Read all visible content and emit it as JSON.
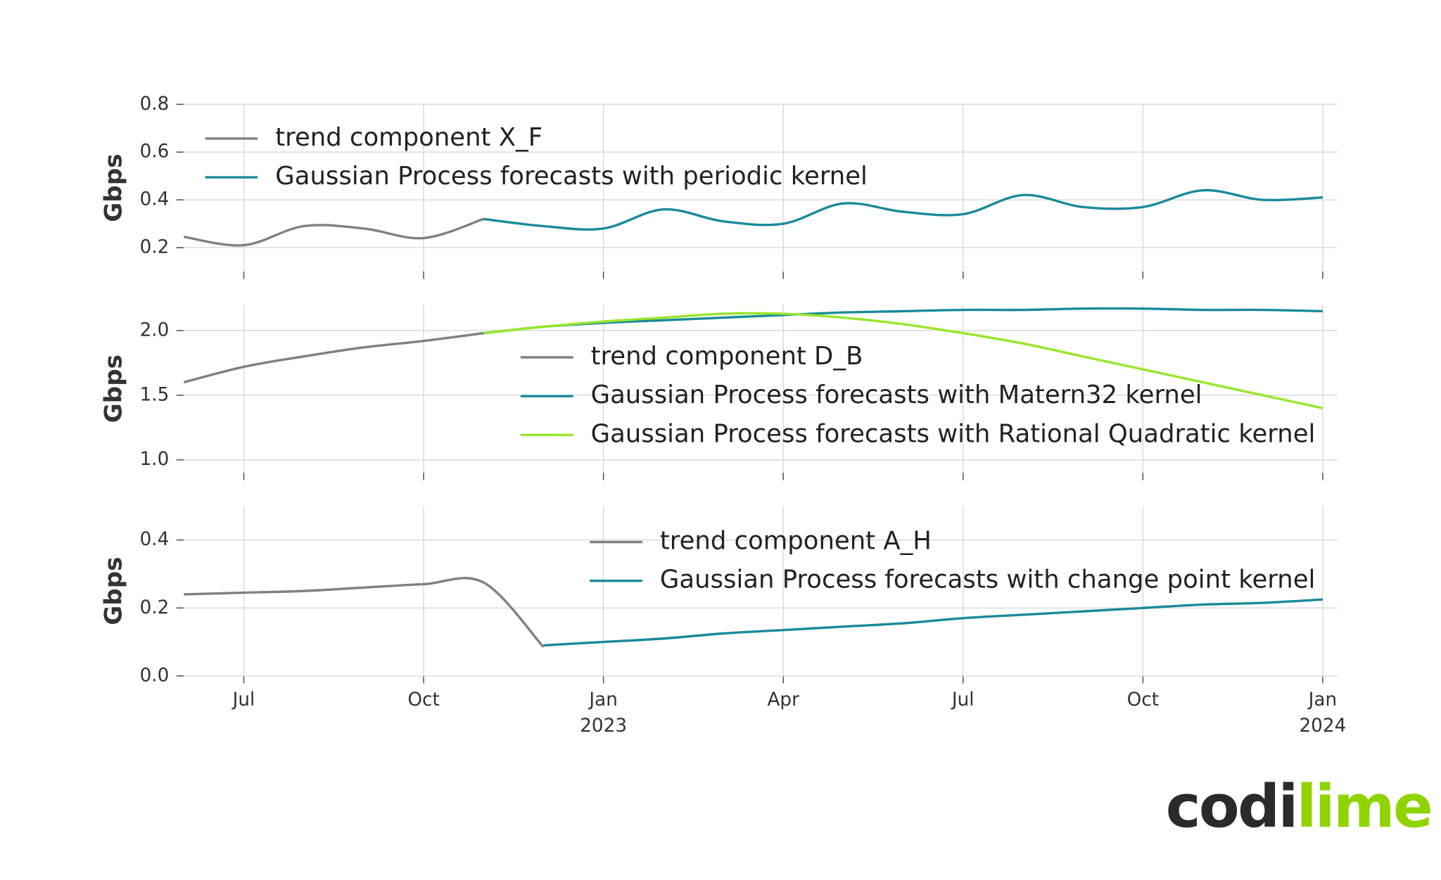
{
  "chart_data": [
    {
      "type": "line",
      "y_label": "Gbps",
      "legend": "upper left",
      "x": [
        "2022-06",
        "2022-07",
        "2022-08",
        "2022-09",
        "2022-10",
        "2022-11",
        "2022-12",
        "2023-01",
        "2023-02",
        "2023-03",
        "2023-04",
        "2023-05",
        "2023-06",
        "2023-07",
        "2023-08",
        "2023-09",
        "2023-10",
        "2023-11",
        "2023-12",
        "2024-01"
      ],
      "series": [
        {
          "name": "trend component X_F",
          "color": "#808080",
          "values": [
            0.245,
            0.21,
            0.29,
            0.28,
            0.24,
            0.32,
            null,
            null,
            null,
            null,
            null,
            null,
            null,
            null,
            null,
            null,
            null,
            null,
            null,
            null
          ]
        },
        {
          "name": "Gaussian Process forecasts with periodic kernel",
          "color": "#1a8a9a",
          "values": [
            null,
            null,
            null,
            null,
            null,
            0.32,
            0.29,
            0.28,
            0.36,
            0.31,
            0.3,
            0.385,
            0.35,
            0.34,
            0.42,
            0.37,
            0.37,
            0.44,
            0.4,
            0.41
          ]
        }
      ],
      "xlim": [
        "2022-06",
        "2024-01"
      ],
      "xticks": [
        "2022-07",
        "2022-10",
        "2023-01",
        "2023-04",
        "2023-07",
        "2023-10",
        "2024-01"
      ],
      "ylim": [
        0.1,
        0.8
      ],
      "yticks": [
        0.2,
        0.4,
        0.6,
        0.8
      ],
      "grid": true
    },
    {
      "type": "line",
      "y_label": "Gbps",
      "legend": "center right",
      "x": [
        "2022-06",
        "2022-07",
        "2022-08",
        "2022-09",
        "2022-10",
        "2022-11",
        "2022-12",
        "2023-01",
        "2023-02",
        "2023-03",
        "2023-04",
        "2023-05",
        "2023-06",
        "2023-07",
        "2023-08",
        "2023-09",
        "2023-10",
        "2023-11",
        "2023-12",
        "2024-01"
      ],
      "series": [
        {
          "name": "trend component D_B",
          "color": "#808080",
          "values": [
            1.6,
            1.72,
            1.8,
            1.87,
            1.92,
            1.98,
            null,
            null,
            null,
            null,
            null,
            null,
            null,
            null,
            null,
            null,
            null,
            null,
            null,
            null
          ]
        },
        {
          "name": "Gaussian Process forecasts with Matern32 kernel",
          "color": "#1a8a9a",
          "values": [
            null,
            null,
            null,
            null,
            null,
            1.98,
            2.03,
            2.06,
            2.08,
            2.1,
            2.12,
            2.14,
            2.15,
            2.16,
            2.16,
            2.17,
            2.17,
            2.16,
            2.16,
            2.15
          ]
        },
        {
          "name": "Gaussian Process forecasts with Rational Quadratic kernel",
          "color": "#99e62a",
          "values": [
            null,
            null,
            null,
            null,
            null,
            1.98,
            2.03,
            2.07,
            2.1,
            2.13,
            2.13,
            2.1,
            2.05,
            1.98,
            1.9,
            1.8,
            1.7,
            1.6,
            1.5,
            1.4
          ]
        }
      ],
      "xlim": [
        "2022-06",
        "2024-01"
      ],
      "xticks": [
        "2022-07",
        "2022-10",
        "2023-01",
        "2023-04",
        "2023-07",
        "2023-10",
        "2024-01"
      ],
      "ylim": [
        0.9,
        2.2
      ],
      "yticks": [
        {
          "value": 1,
          "label": "1.0"
        },
        1.5,
        {
          "value": 2,
          "label": "2.0"
        }
      ],
      "grid": true
    },
    {
      "type": "line",
      "y_label": "Gbps",
      "legend": "upper right",
      "x": [
        "2022-06",
        "2022-07",
        "2022-08",
        "2022-09",
        "2022-10",
        "2022-11",
        "2022-12",
        "2023-01",
        "2023-02",
        "2023-03",
        "2023-04",
        "2023-05",
        "2023-06",
        "2023-07",
        "2023-08",
        "2023-09",
        "2023-10",
        "2023-11",
        "2023-12",
        "2024-01"
      ],
      "series": [
        {
          "name": "trend component A_H",
          "color": "#808080",
          "values": [
            0.24,
            0.245,
            0.25,
            0.26,
            0.27,
            0.275,
            0.085,
            null,
            null,
            null,
            null,
            null,
            null,
            null,
            null,
            null,
            null,
            null,
            null,
            null
          ]
        },
        {
          "name": "Gaussian Process forecasts with change point kernel",
          "color": "#1a8a9a",
          "values": [
            null,
            null,
            null,
            null,
            null,
            null,
            0.09,
            0.1,
            0.11,
            0.125,
            0.135,
            0.145,
            0.155,
            0.17,
            0.18,
            0.19,
            0.2,
            0.21,
            0.215,
            0.225
          ]
        }
      ],
      "xlim": [
        "2022-06",
        "2024-01"
      ],
      "xticks": [
        {
          "value": "2022-07",
          "label": "Jul"
        },
        {
          "value": "2022-10",
          "label": "Oct"
        },
        {
          "value": "2023-01",
          "label": "Jan\n2023"
        },
        {
          "value": "2023-04",
          "label": "Apr"
        },
        {
          "value": "2023-07",
          "label": "Jul"
        },
        {
          "value": "2023-10",
          "label": "Oct"
        },
        {
          "value": "2024-01",
          "label": "Jan\n2024"
        }
      ],
      "ylim": [
        0,
        0.5
      ],
      "yticks": [
        {
          "value": 0,
          "label": "0.0"
        },
        0.2,
        0.4
      ],
      "grid": true
    }
  ],
  "logo_parts": [
    "codi",
    "lime"
  ]
}
